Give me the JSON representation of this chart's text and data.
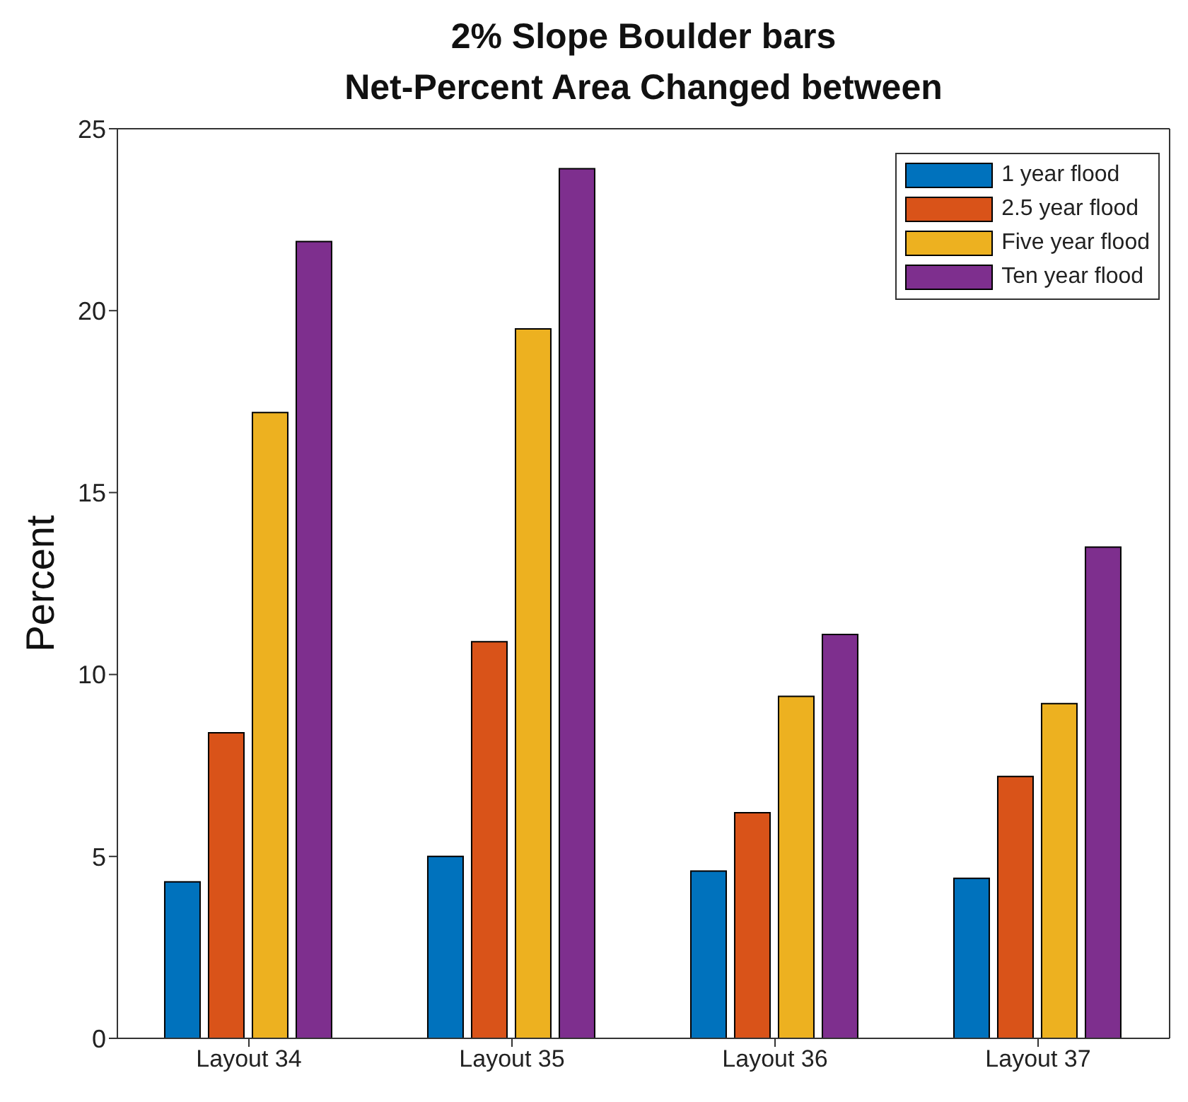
{
  "chart_data": {
    "type": "bar",
    "title": "2% Slope Boulder bars\nNet-Percent Area Changed between",
    "ylabel": "Percent",
    "categories": [
      "Layout 34",
      "Layout 35",
      "Layout 36",
      "Layout 37"
    ],
    "series": [
      {
        "name": "1 year flood",
        "color": "#0072bd",
        "values": [
          4.3,
          5.0,
          4.6,
          4.4
        ]
      },
      {
        "name": "2.5 year flood",
        "color": "#d95319",
        "values": [
          8.4,
          10.9,
          6.2,
          7.2
        ]
      },
      {
        "name": "Five year flood",
        "color": "#edb120",
        "values": [
          17.2,
          19.5,
          9.4,
          9.2
        ]
      },
      {
        "name": "Ten year flood",
        "color": "#7e2f8e",
        "values": [
          21.9,
          23.9,
          11.1,
          13.5
        ]
      }
    ],
    "ylim": [
      0,
      25
    ],
    "yticks": [
      0,
      5,
      10,
      15,
      20,
      25
    ],
    "grid": false,
    "legend": "top right"
  }
}
